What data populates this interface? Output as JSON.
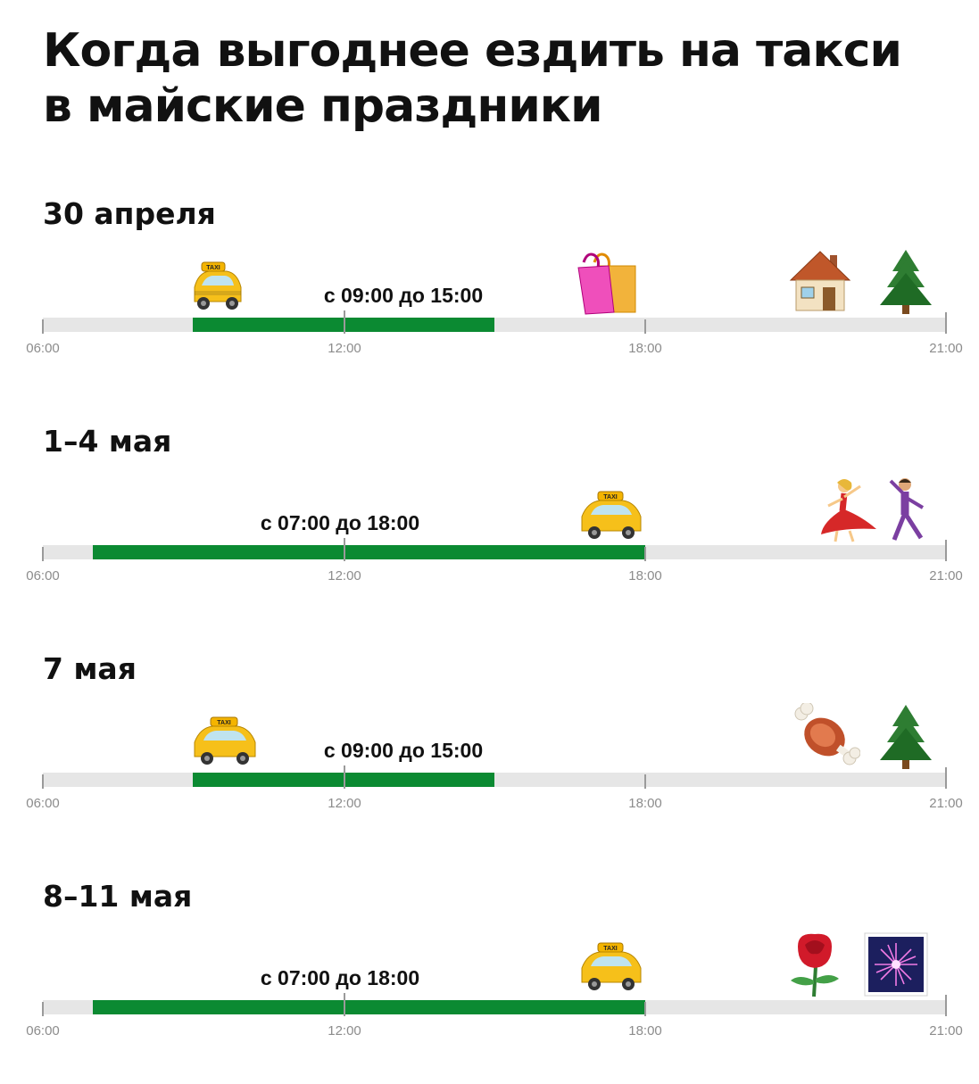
{
  "title_line1": "Когда выгоднее ездить на такси",
  "title_line2": "в майские праздники",
  "axis_labels": [
    "06:00",
    "12:00",
    "18:00",
    "21:00"
  ],
  "colors": {
    "green": "#0b8a32",
    "track": "#e6e6e6",
    "tick_label": "#8c8c8c"
  },
  "days": [
    {
      "date": "30 апреля",
      "range_label": "с 09:00 до 15:00",
      "green_from": "09:00",
      "green_to": "15:00",
      "icons": [
        "taxi-icon",
        "shopping-bags-icon",
        "house-icon",
        "evergreen-tree-icon"
      ]
    },
    {
      "date": "1–4 мая",
      "range_label": "с 07:00 до 18:00",
      "green_from": "07:00",
      "green_to": "18:00",
      "icons": [
        "taxi-icon",
        "dancing-woman-icon",
        "dancing-man-icon"
      ]
    },
    {
      "date": "7 мая",
      "range_label": "с 09:00 до 15:00",
      "green_from": "09:00",
      "green_to": "15:00",
      "icons": [
        "taxi-icon",
        "meat-on-bone-icon",
        "evergreen-tree-icon"
      ]
    },
    {
      "date": "8–11 мая",
      "range_label": "с 07:00 до 18:00",
      "green_from": "07:00",
      "green_to": "18:00",
      "icons": [
        "taxi-icon",
        "rose-icon",
        "fireworks-icon"
      ]
    }
  ]
}
